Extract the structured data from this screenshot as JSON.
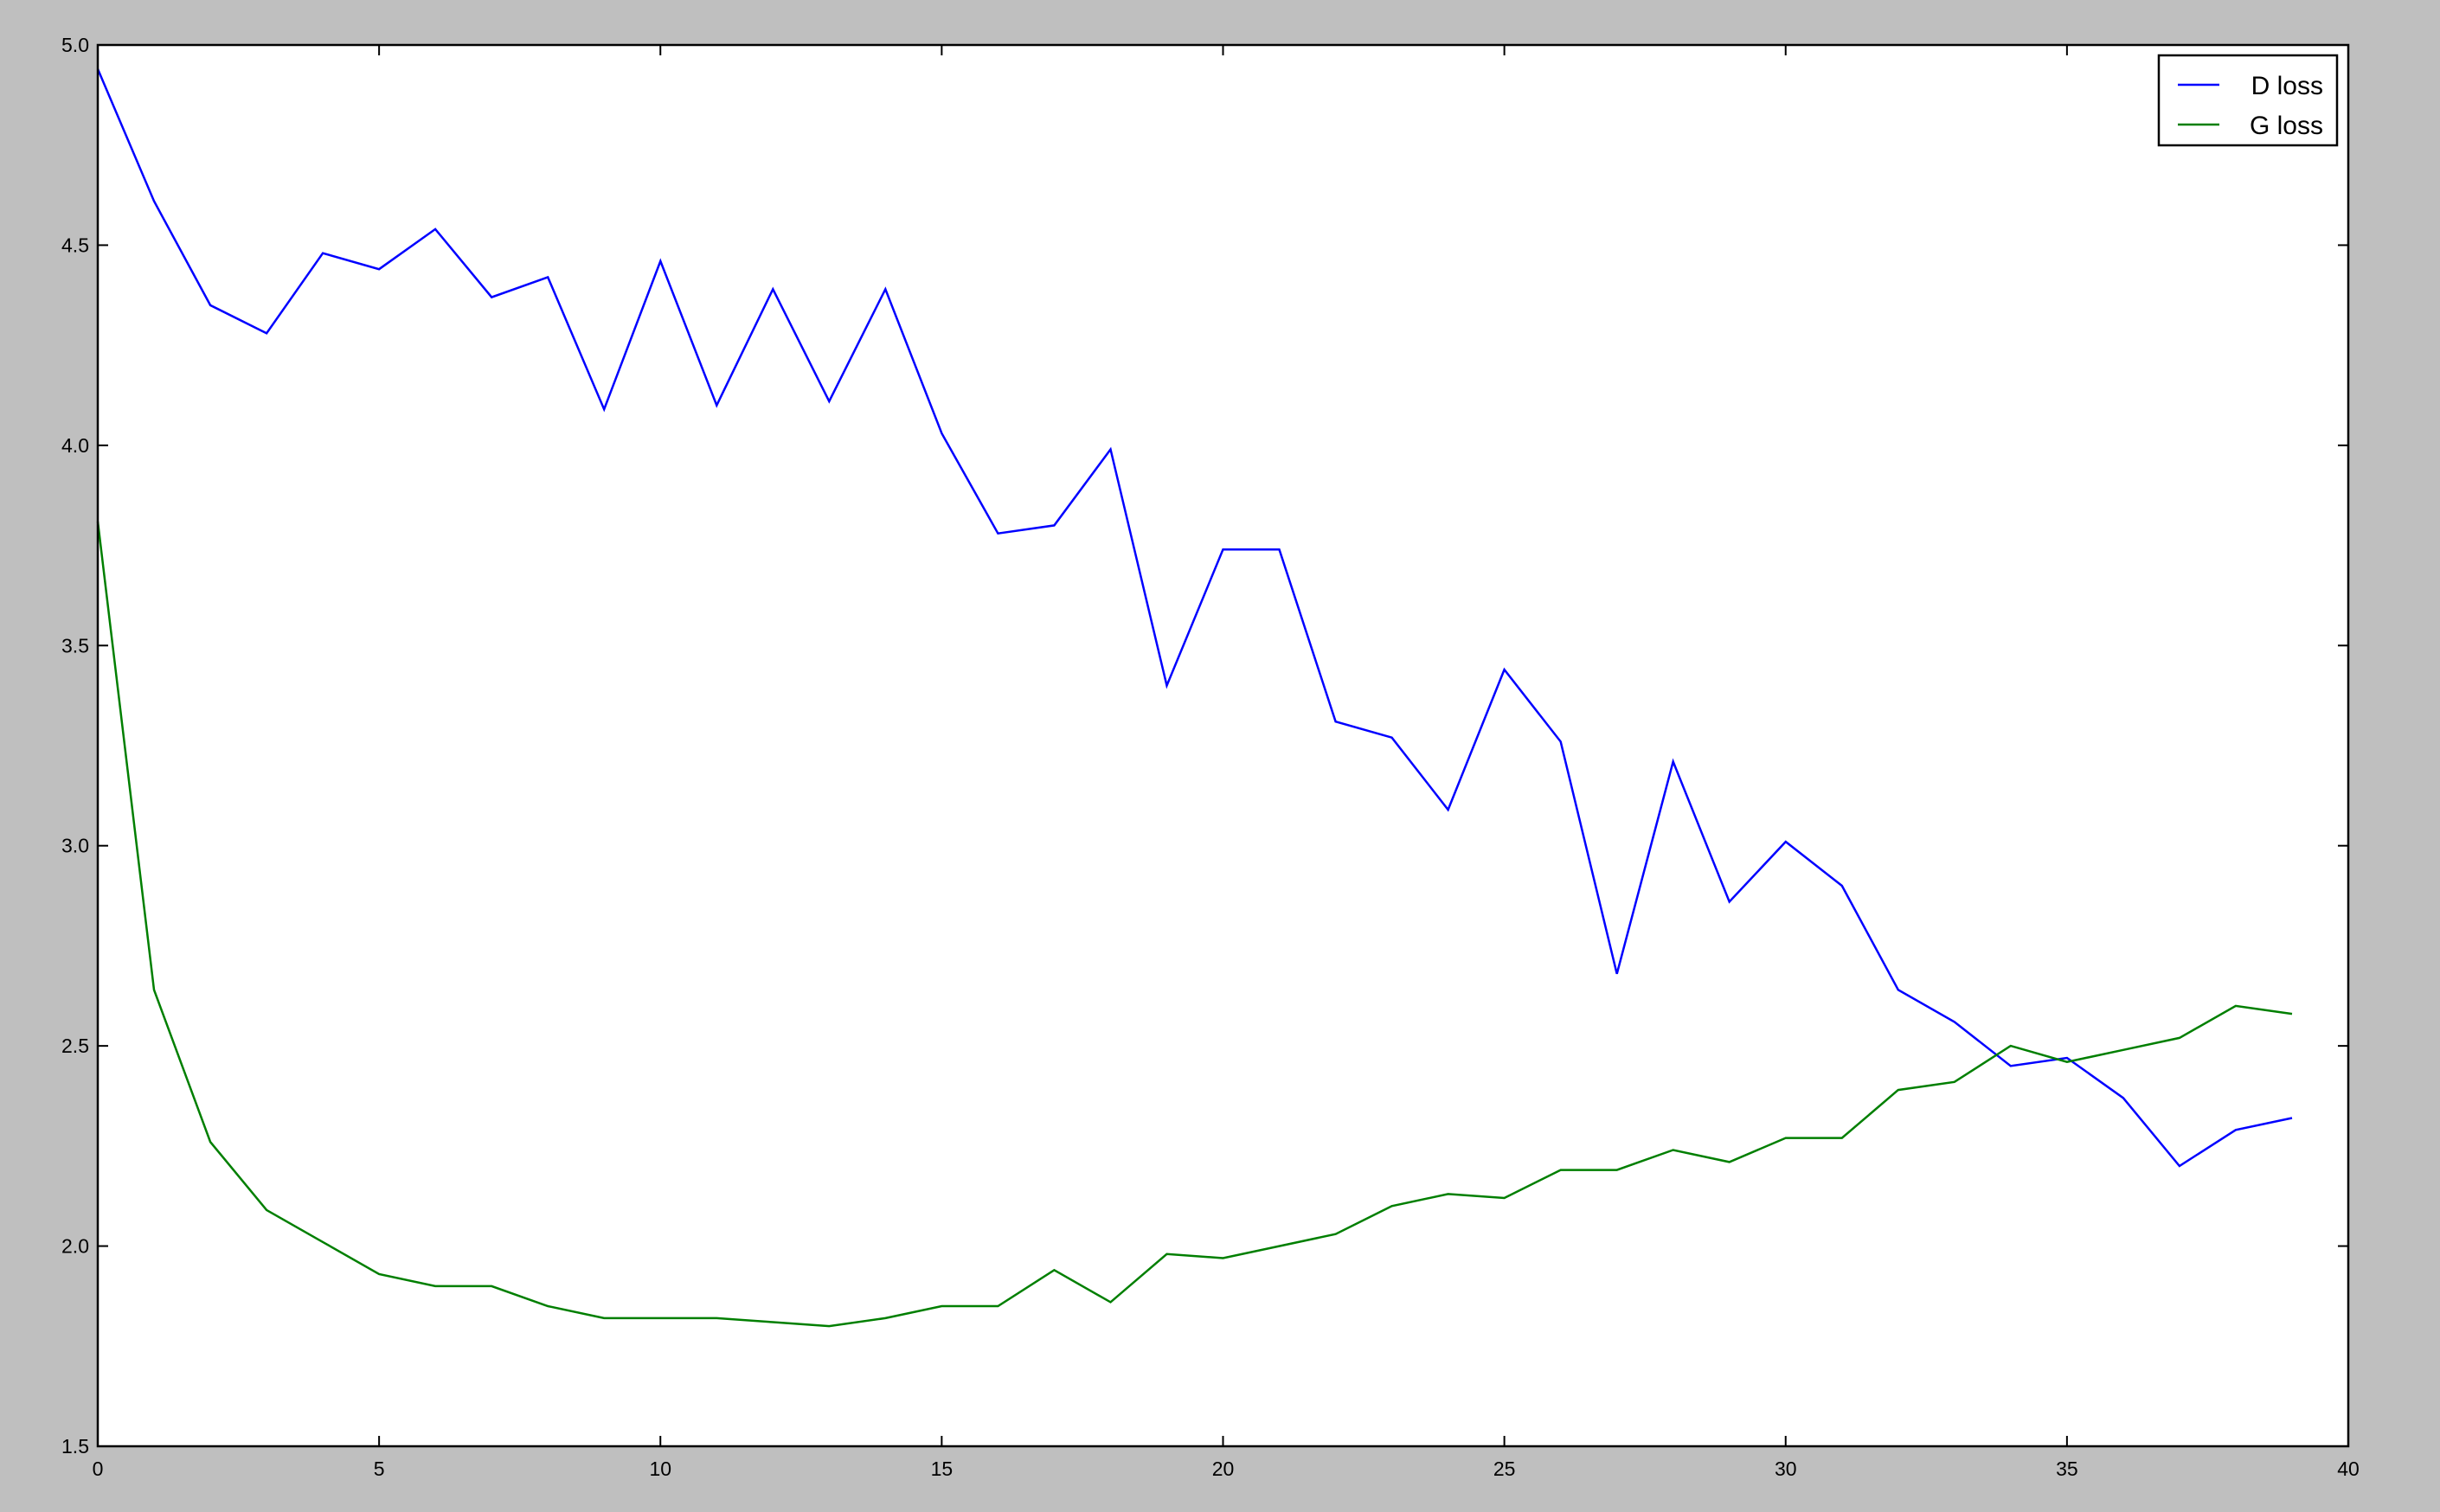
{
  "chart_data": {
    "type": "line",
    "title": "",
    "xlabel": "",
    "ylabel": "",
    "xlim": [
      0,
      40
    ],
    "ylim": [
      1.5,
      5.0
    ],
    "x_ticks": [
      0,
      5,
      10,
      15,
      20,
      25,
      30,
      35,
      40
    ],
    "y_ticks": [
      1.5,
      2.0,
      2.5,
      3.0,
      3.5,
      4.0,
      4.5,
      5.0
    ],
    "x_tick_labels": [
      "0",
      "5",
      "10",
      "15",
      "20",
      "25",
      "30",
      "35",
      "40"
    ],
    "y_tick_labels": [
      "1.5",
      "2.0",
      "2.5",
      "3.0",
      "3.5",
      "4.0",
      "4.5",
      "5.0"
    ],
    "grid": false,
    "legend_position": "top-right",
    "x": [
      0,
      1,
      2,
      3,
      4,
      5,
      6,
      7,
      8,
      9,
      10,
      11,
      12,
      13,
      14,
      15,
      16,
      17,
      18,
      19,
      20,
      21,
      22,
      23,
      24,
      25,
      26,
      27,
      28,
      29,
      30,
      31,
      32,
      33,
      34,
      35,
      36,
      37,
      38,
      39
    ],
    "series": [
      {
        "name": "D loss",
        "color": "#0000ff",
        "values": [
          4.94,
          4.61,
          4.35,
          4.28,
          4.48,
          4.44,
          4.54,
          4.37,
          4.42,
          4.09,
          4.46,
          4.1,
          4.39,
          4.11,
          4.39,
          4.03,
          3.78,
          3.8,
          3.99,
          3.4,
          3.74,
          3.74,
          3.31,
          3.27,
          3.09,
          3.44,
          3.26,
          2.68,
          3.21,
          2.86,
          3.01,
          2.9,
          2.64,
          2.56,
          2.45,
          2.47,
          2.37,
          2.2,
          2.29,
          2.32
        ]
      },
      {
        "name": "G loss",
        "color": "#007f00",
        "values": [
          3.81,
          2.64,
          2.26,
          2.09,
          2.01,
          1.93,
          1.9,
          1.9,
          1.85,
          1.82,
          1.82,
          1.82,
          1.81,
          1.8,
          1.82,
          1.85,
          1.85,
          1.94,
          1.86,
          1.98,
          1.97,
          2.0,
          2.03,
          2.1,
          2.13,
          2.12,
          2.19,
          2.19,
          2.24,
          2.21,
          2.27,
          2.27,
          2.39,
          2.41,
          2.5,
          2.46,
          2.49,
          2.52,
          2.6,
          2.58
        ]
      }
    ]
  }
}
